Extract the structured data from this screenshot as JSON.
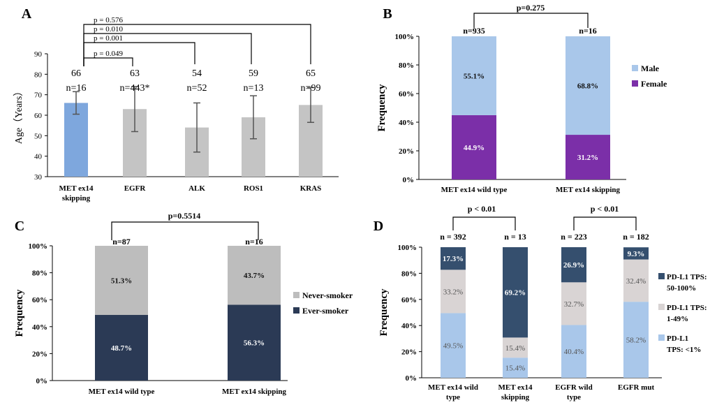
{
  "chart_data": [
    {
      "panel": "A",
      "type": "bar",
      "ylabel": "Age（Years）",
      "ylim": [
        30,
        90
      ],
      "yticks": [
        "30",
        "40",
        "50",
        "60",
        "70",
        "80",
        "90"
      ],
      "categories": [
        "MET ex14",
        "EGFR",
        "ALK",
        "ROS1",
        "KRAS"
      ],
      "category_sub": [
        "skipping",
        "",
        "",
        "",
        ""
      ],
      "values": [
        66,
        63,
        54,
        59,
        65
      ],
      "value_labels": [
        "66",
        "63",
        "54",
        "59",
        "65"
      ],
      "errors": [
        5.5,
        11,
        12,
        10.5,
        8.5
      ],
      "n_labels": [
        "n=16",
        "n=443*",
        "n=52",
        "n=13",
        "n=99"
      ],
      "colors": [
        "#7ea7dd",
        "#c4c4c4",
        "#c4c4c4",
        "#c4c4c4",
        "#c4c4c4"
      ],
      "comparisons": [
        {
          "target": 4,
          "label": "p = 0.576"
        },
        {
          "target": 3,
          "label": "p = 0.010"
        },
        {
          "target": 2,
          "label": "p = 0.001"
        },
        {
          "target": 1,
          "label": "p = 0.049"
        }
      ]
    },
    {
      "panel": "B",
      "type": "bar",
      "stacked": true,
      "ylabel": "Frequency",
      "yticks": [
        "0%",
        "20%",
        "40%",
        "60%",
        "80%",
        "100%"
      ],
      "categories": [
        "MET ex14 wild type",
        "MET ex14 skipping"
      ],
      "n_labels": [
        "n=935",
        "n=16"
      ],
      "p_label": "p=0.275",
      "series": [
        {
          "name": "Female",
          "color": "#7b2fa8",
          "values": [
            44.9,
            31.2
          ],
          "labels": [
            "44.9%",
            "31.2%"
          ]
        },
        {
          "name": "Male",
          "color": "#a9c7ea",
          "values": [
            55.1,
            68.8
          ],
          "labels": [
            "55.1%",
            "68.8%"
          ]
        }
      ],
      "legend": [
        "Male",
        "Female"
      ]
    },
    {
      "panel": "C",
      "type": "bar",
      "stacked": true,
      "ylabel": "Frequency",
      "yticks": [
        "0%",
        "20%",
        "40%",
        "60%",
        "80%",
        "100%"
      ],
      "categories": [
        "MET ex14 wild type",
        "MET ex14 skipping"
      ],
      "n_labels": [
        "n=87",
        "n=16"
      ],
      "p_label": "p=0.5514",
      "series": [
        {
          "name": "Ever-smoker",
          "color": "#2b3a55",
          "values": [
            48.7,
            56.3
          ],
          "labels": [
            "48.7%",
            "56.3%"
          ]
        },
        {
          "name": "Never-smoker",
          "color": "#bdbdbd",
          "values": [
            51.3,
            43.7
          ],
          "labels": [
            "51.3%",
            "43.7%"
          ]
        }
      ],
      "legend": [
        "Never-smoker",
        "Ever-smoker"
      ]
    },
    {
      "panel": "D",
      "type": "bar",
      "stacked": true,
      "ylabel": "Frequency",
      "yticks": [
        "0%",
        "20%",
        "40%",
        "60%",
        "80%",
        "100%"
      ],
      "categories": [
        "MET ex14 wild",
        "MET ex14",
        "EGFR wild",
        "EGFR mut"
      ],
      "category_sub": [
        "type",
        "skipping",
        "type",
        ""
      ],
      "n_labels": [
        "n = 392",
        "n = 13",
        "n = 223",
        "n = 182"
      ],
      "p_labels": [
        "p  < 0.01",
        "p < 0.01"
      ],
      "series": [
        {
          "name": "PD-L1 TPS: <1%",
          "color": "#a9c7ea",
          "values": [
            49.5,
            15.4,
            40.4,
            58.2
          ],
          "labels": [
            "49.5%",
            "15.4%",
            "40.4%",
            "58.2%"
          ]
        },
        {
          "name": "PD-L1 TPS: 1-49%",
          "color": "#d9d4d4",
          "values": [
            33.2,
            15.4,
            32.7,
            32.4
          ],
          "labels": [
            "33.2%",
            "15.4%",
            "32.7%",
            "32.4%"
          ]
        },
        {
          "name": "PD-L1 TPS: 50-100%",
          "color": "#354f6e",
          "values": [
            17.3,
            69.2,
            26.9,
            9.3
          ],
          "labels": [
            "17.3%",
            "69.2%",
            "26.9%",
            "9.3%"
          ]
        }
      ],
      "legend": [
        {
          "line1": "PD-L1 TPS:",
          "line2": "50-100%"
        },
        {
          "line1": "PD-L1 TPS:",
          "line2": "1-49%"
        },
        {
          "line1": "PD-L1",
          "line2": "TPS: <1%"
        }
      ]
    }
  ],
  "panel_letters": [
    "A",
    "B",
    "C",
    "D"
  ]
}
